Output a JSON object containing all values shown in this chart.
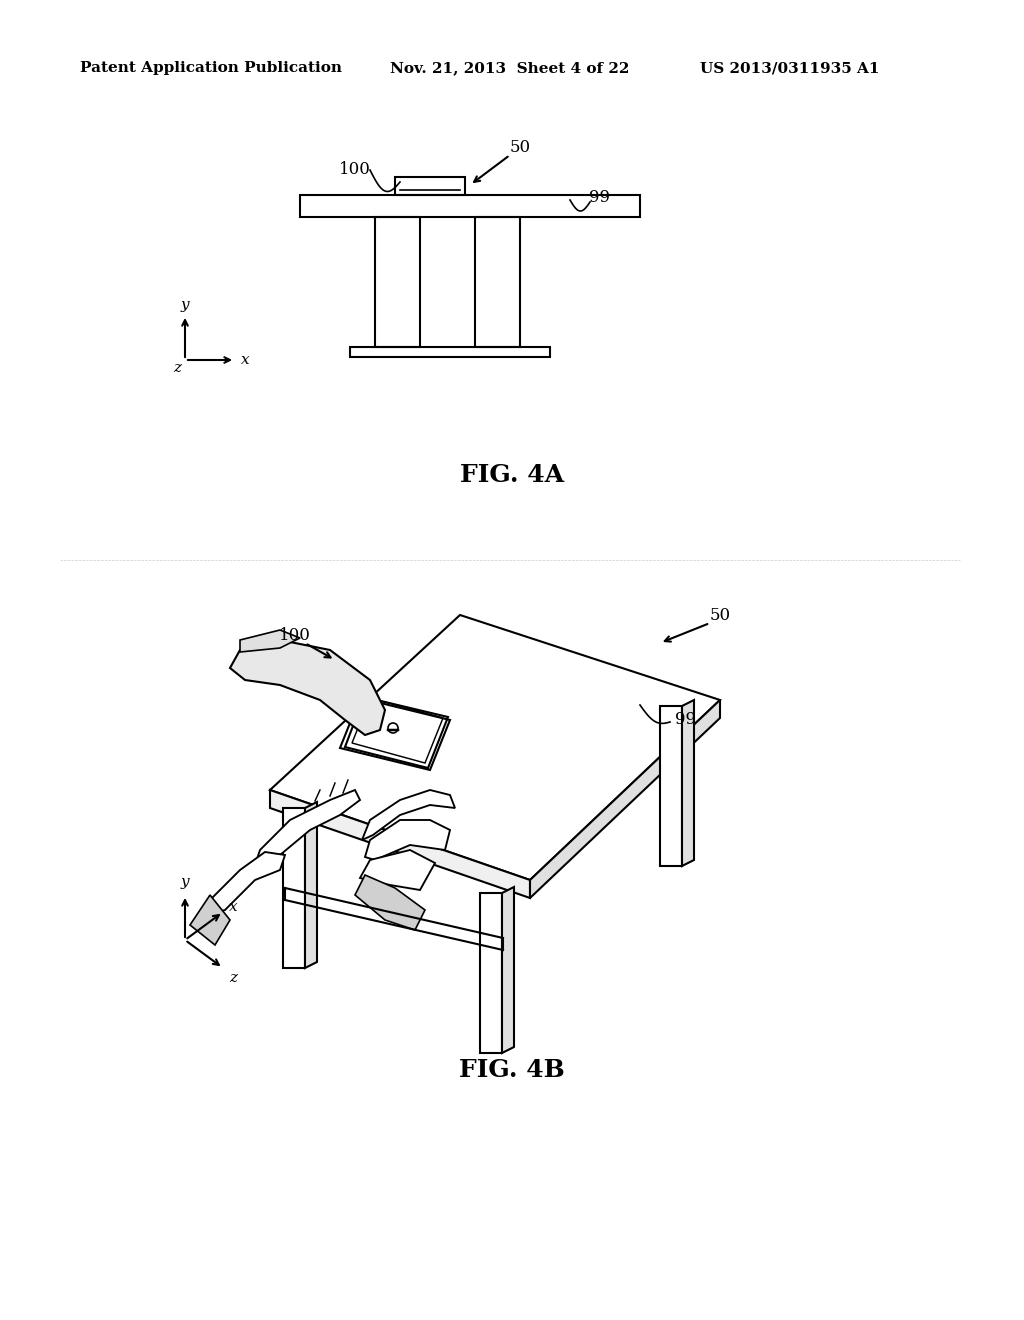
{
  "background_color": "#ffffff",
  "line_color": "#000000",
  "header_text": "Patent Application Publication",
  "header_date": "Nov. 21, 2013  Sheet 4 of 22",
  "header_patent": "US 2013/0311935 A1",
  "fig4a_label": "FIG. 4A",
  "fig4b_label": "FIG. 4B",
  "label_50a": "50",
  "label_100a": "100",
  "label_99a": "99",
  "label_50b": "50",
  "label_100b": "100",
  "label_99b": "99",
  "header_fontsize": 11,
  "figlabel_fontsize": 18,
  "annotation_fontsize": 12
}
